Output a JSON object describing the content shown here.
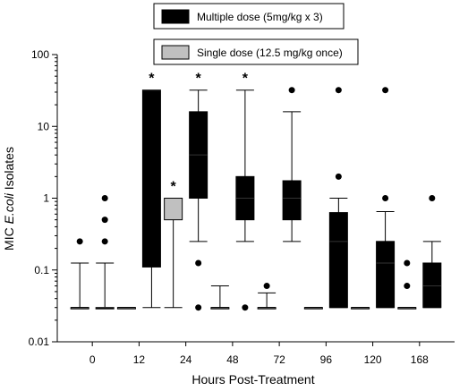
{
  "chart_data": {
    "type": "box",
    "y_scale": "log",
    "ylim": [
      0.01,
      100
    ],
    "ylabel_prefix": "MIC ",
    "ylabel_italic": "E.coli",
    "ylabel_suffix": " Isolates",
    "xlabel": "Hours Post-Treatment",
    "y_ticks": [
      {
        "value": 0.01,
        "label": "0.01"
      },
      {
        "value": 0.1,
        "label": "0.1"
      },
      {
        "value": 1,
        "label": "1"
      },
      {
        "value": 10,
        "label": "10"
      },
      {
        "value": 100,
        "label": "100"
      }
    ],
    "categories": [
      "0",
      "12",
      "24",
      "48",
      "72",
      "96",
      "120",
      "168"
    ],
    "legend": [
      {
        "name": "Multiple dose (5mg/kg x 3)",
        "color": "#000000"
      },
      {
        "name": "Single dose (12.5 mg/kg once)",
        "color": "#c0c0c0"
      }
    ],
    "boxes": [
      {
        "category": "0",
        "series": "Single dose (12.5 mg/kg once)",
        "whisker_low": 0.03,
        "q1": 0.03,
        "median": 0.03,
        "q3": 0.03,
        "whisker_high": 0.125,
        "outliers": [
          0.25
        ],
        "significant": false
      },
      {
        "category": "0",
        "series": "Multiple dose (5mg/kg x 3)",
        "whisker_low": 0.03,
        "q1": 0.03,
        "median": 0.03,
        "q3": 0.03,
        "whisker_high": 0.125,
        "outliers": [
          0.25,
          0.5,
          1
        ],
        "significant": false
      },
      {
        "category": "12",
        "series": "Single dose (12.5 mg/kg once)",
        "whisker_low": 0.03,
        "q1": 0.03,
        "median": 0.03,
        "q3": 0.03,
        "whisker_high": 0.03,
        "outliers": [],
        "significant": false
      },
      {
        "category": "12",
        "series": "Multiple dose (5mg/kg x 3)",
        "whisker_low": 0.03,
        "q1": 0.11,
        "median": 32,
        "q3": 32,
        "whisker_high": 32,
        "outliers": [],
        "significant": true
      },
      {
        "category": "24",
        "series": "Single dose (12.5 mg/kg once)",
        "whisker_low": 0.03,
        "q1": 0.5,
        "median": 1,
        "q3": 1,
        "whisker_high": 1,
        "outliers": [],
        "significant": true
      },
      {
        "category": "24",
        "series": "Multiple dose (5mg/kg x 3)",
        "whisker_low": 0.25,
        "q1": 1,
        "median": 4,
        "q3": 16,
        "whisker_high": 32,
        "outliers": [
          0.125,
          0.03
        ],
        "significant": true
      },
      {
        "category": "48",
        "series": "Single dose (12.5 mg/kg once)",
        "whisker_low": 0.03,
        "q1": 0.03,
        "median": 0.03,
        "q3": 0.03,
        "whisker_high": 0.06,
        "outliers": [],
        "significant": false
      },
      {
        "category": "48",
        "series": "Multiple dose (5mg/kg x 3)",
        "whisker_low": 0.25,
        "q1": 0.5,
        "median": 1,
        "q3": 2,
        "whisker_high": 32,
        "outliers": [
          0.03
        ],
        "significant": true
      },
      {
        "category": "72",
        "series": "Single dose (12.5 mg/kg once)",
        "whisker_low": 0.03,
        "q1": 0.03,
        "median": 0.03,
        "q3": 0.03,
        "whisker_high": 0.048,
        "outliers": [
          0.06
        ],
        "significant": false
      },
      {
        "category": "72",
        "series": "Multiple dose (5mg/kg x 3)",
        "whisker_low": 0.25,
        "q1": 0.5,
        "median": 1,
        "q3": 1.75,
        "whisker_high": 16,
        "outliers": [
          32
        ],
        "significant": false
      },
      {
        "category": "96",
        "series": "Single dose (12.5 mg/kg once)",
        "whisker_low": 0.03,
        "q1": 0.03,
        "median": 0.03,
        "q3": 0.03,
        "whisker_high": 0.03,
        "outliers": [],
        "significant": false
      },
      {
        "category": "96",
        "series": "Multiple dose (5mg/kg x 3)",
        "whisker_low": 0.03,
        "q1": 0.03,
        "median": 0.25,
        "q3": 0.63,
        "whisker_high": 1,
        "outliers": [
          2,
          32
        ],
        "significant": false
      },
      {
        "category": "120",
        "series": "Single dose (12.5 mg/kg once)",
        "whisker_low": 0.03,
        "q1": 0.03,
        "median": 0.03,
        "q3": 0.03,
        "whisker_high": 0.03,
        "outliers": [],
        "significant": false
      },
      {
        "category": "120",
        "series": "Multiple dose (5mg/kg x 3)",
        "whisker_low": 0.03,
        "q1": 0.03,
        "median": 0.125,
        "q3": 0.25,
        "whisker_high": 0.65,
        "outliers": [
          1,
          32
        ],
        "significant": false
      },
      {
        "category": "168",
        "series": "Single dose (12.5 mg/kg once)",
        "whisker_low": 0.03,
        "q1": 0.03,
        "median": 0.03,
        "q3": 0.03,
        "whisker_high": 0.03,
        "outliers": [
          0.06,
          0.125
        ],
        "significant": false
      },
      {
        "category": "168",
        "series": "Multiple dose (5mg/kg x 3)",
        "whisker_low": 0.03,
        "q1": 0.03,
        "median": 0.06,
        "q3": 0.125,
        "whisker_high": 0.25,
        "outliers": [
          1
        ],
        "significant": false
      }
    ],
    "significance_marker": "*",
    "grid": false,
    "legend_placement": "top-center, above plot"
  }
}
